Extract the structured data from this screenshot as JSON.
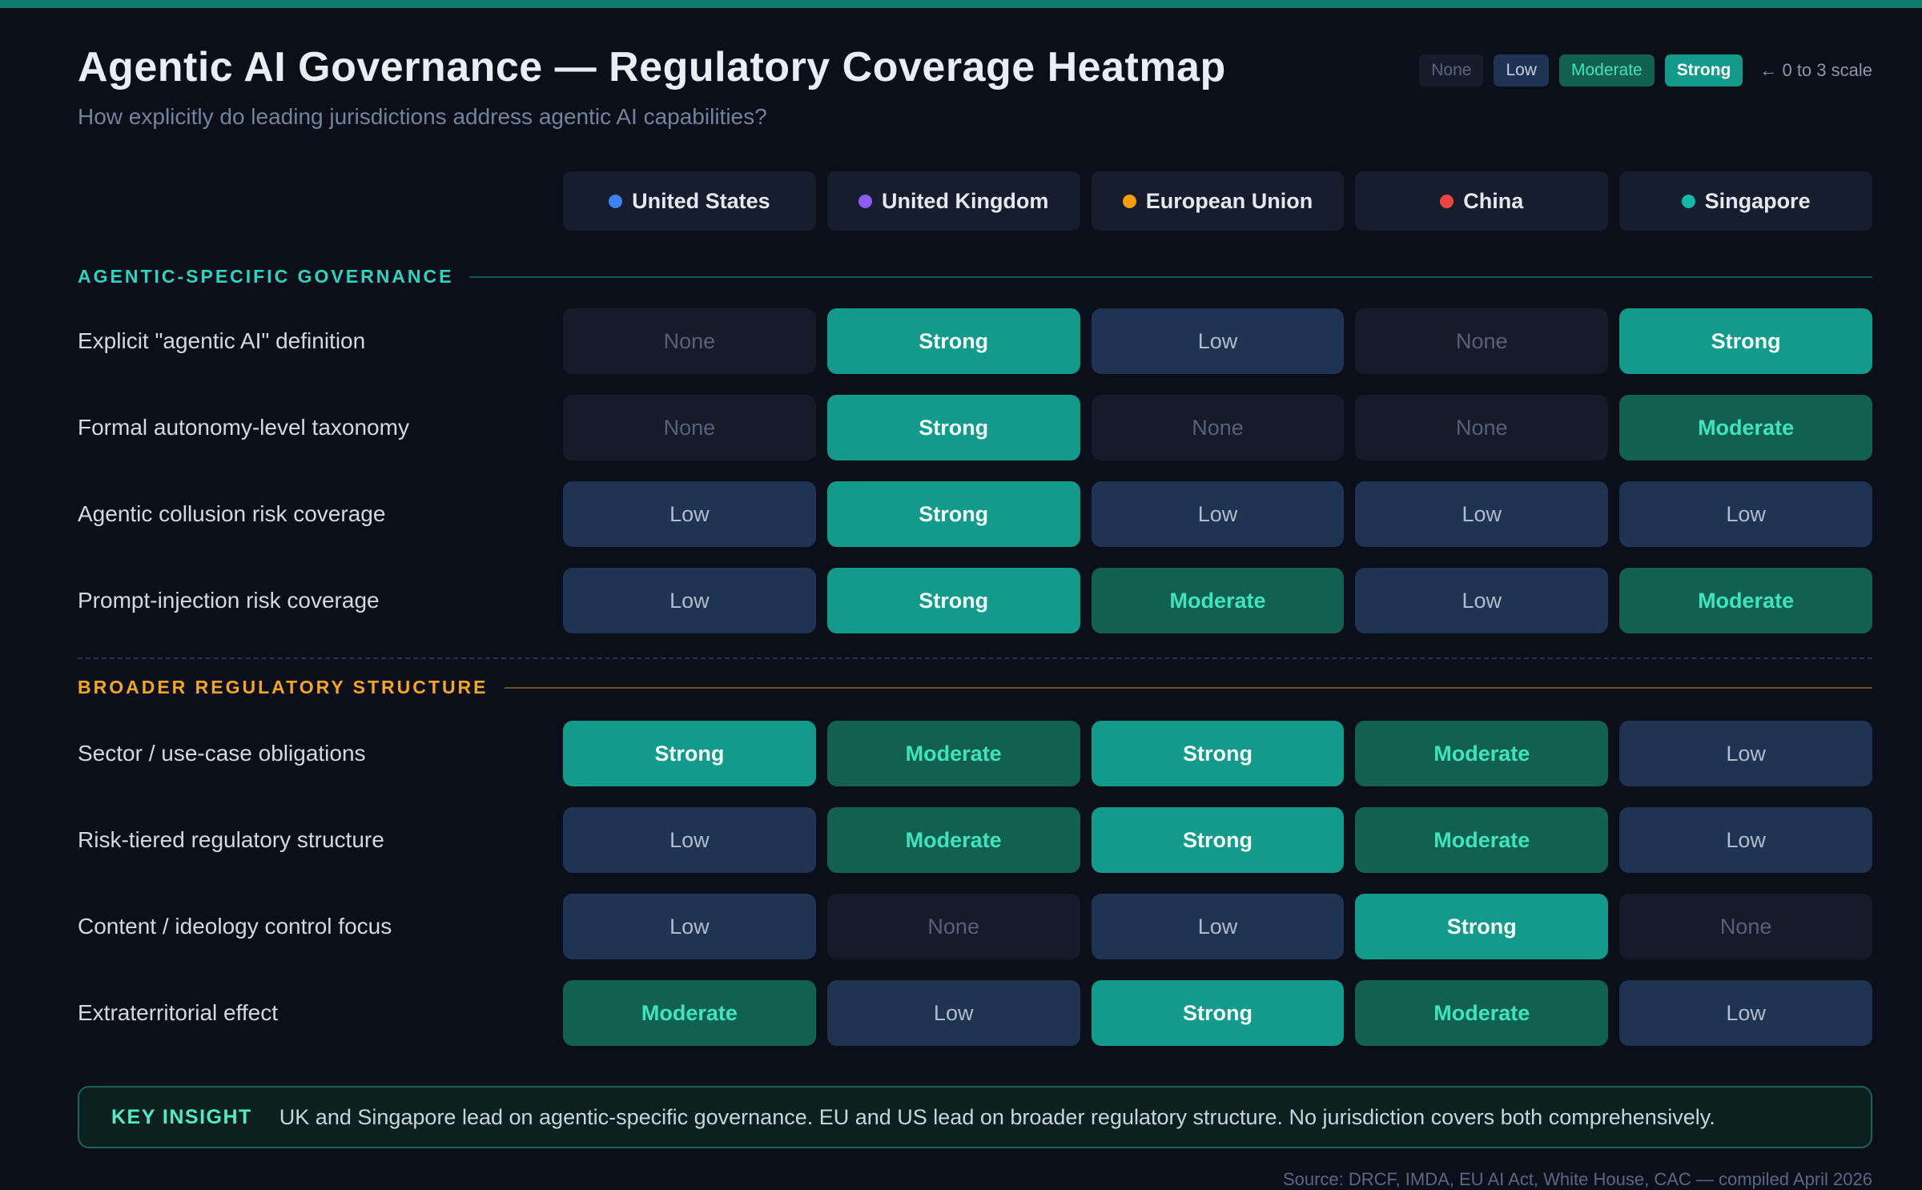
{
  "colors": {
    "accent_bar": "#0f7a6d",
    "background": "#0b0f19",
    "teal_section": "#2dd4bf",
    "amber_section": "#f5a623",
    "strong_bg": "#129a8a",
    "moderate_bg": "#12604f",
    "low_bg": "#1f3353",
    "none_bg": "#151b29"
  },
  "header": {
    "title": "Agentic AI Governance — Regulatory Coverage Heatmap",
    "subtitle": "How explicitly do leading jurisdictions address agentic AI capabilities?"
  },
  "legend": {
    "levels": [
      {
        "label": "None",
        "level": "none"
      },
      {
        "label": "Low",
        "level": "low"
      },
      {
        "label": "Moderate",
        "level": "moderate"
      },
      {
        "label": "Strong",
        "level": "strong"
      }
    ],
    "scale_note": "← 0 to 3 scale"
  },
  "jurisdictions": [
    {
      "name": "United States",
      "dot_color": "#3b82f6"
    },
    {
      "name": "United Kingdom",
      "dot_color": "#8b5cf6"
    },
    {
      "name": "European Union",
      "dot_color": "#f59e0b"
    },
    {
      "name": "China",
      "dot_color": "#ef4444"
    },
    {
      "name": "Singapore",
      "dot_color": "#14b8a6"
    }
  ],
  "level_labels": {
    "none": "None",
    "low": "Low",
    "moderate": "Moderate",
    "strong": "Strong"
  },
  "sections": [
    {
      "title": "AGENTIC-SPECIFIC GOVERNANCE",
      "accent": "teal",
      "rows": [
        {
          "label": "Explicit \"agentic AI\" definition",
          "cells": [
            "none",
            "strong",
            "low",
            "none",
            "strong"
          ]
        },
        {
          "label": "Formal autonomy-level taxonomy",
          "cells": [
            "none",
            "strong",
            "none",
            "none",
            "moderate"
          ]
        },
        {
          "label": "Agentic collusion risk coverage",
          "cells": [
            "low",
            "strong",
            "low",
            "low",
            "low"
          ]
        },
        {
          "label": "Prompt-injection risk coverage",
          "cells": [
            "low",
            "strong",
            "moderate",
            "low",
            "moderate"
          ]
        }
      ]
    },
    {
      "title": "BROADER REGULATORY STRUCTURE",
      "accent": "amber",
      "rows": [
        {
          "label": "Sector / use-case obligations",
          "cells": [
            "strong",
            "moderate",
            "strong",
            "moderate",
            "low"
          ]
        },
        {
          "label": "Risk-tiered regulatory structure",
          "cells": [
            "low",
            "moderate",
            "strong",
            "moderate",
            "low"
          ]
        },
        {
          "label": "Content / ideology control focus",
          "cells": [
            "low",
            "none",
            "low",
            "strong",
            "none"
          ]
        },
        {
          "label": "Extraterritorial effect",
          "cells": [
            "moderate",
            "low",
            "strong",
            "moderate",
            "low"
          ]
        }
      ]
    }
  ],
  "insight": {
    "label": "KEY INSIGHT",
    "text": "UK and Singapore lead on agentic-specific governance. EU and US lead on broader regulatory structure. No jurisdiction covers both comprehensively."
  },
  "source": "Source: DRCF, IMDA, EU AI Act, White House, CAC — compiled April 2026",
  "chart_data": {
    "type": "heatmap",
    "title": "Agentic AI Governance — Regulatory Coverage Heatmap",
    "subtitle": "How explicitly do leading jurisdictions address agentic AI capabilities?",
    "x_categories": [
      "United States",
      "United Kingdom",
      "European Union",
      "China",
      "Singapore"
    ],
    "value_scale": {
      "0": "None",
      "1": "Low",
      "2": "Moderate",
      "3": "Strong"
    },
    "scale_range": [
      0,
      3
    ],
    "legend_position": "top-right",
    "sections": [
      {
        "name": "Agentic-specific governance",
        "rows": [
          {
            "label": "Explicit \"agentic AI\" definition",
            "values": [
              0,
              3,
              1,
              0,
              3
            ]
          },
          {
            "label": "Formal autonomy-level taxonomy",
            "values": [
              0,
              3,
              0,
              0,
              2
            ]
          },
          {
            "label": "Agentic collusion risk coverage",
            "values": [
              1,
              3,
              1,
              1,
              1
            ]
          },
          {
            "label": "Prompt-injection risk coverage",
            "values": [
              1,
              3,
              2,
              1,
              2
            ]
          }
        ]
      },
      {
        "name": "Broader regulatory structure",
        "rows": [
          {
            "label": "Sector / use-case obligations",
            "values": [
              3,
              2,
              3,
              2,
              1
            ]
          },
          {
            "label": "Risk-tiered regulatory structure",
            "values": [
              1,
              2,
              3,
              2,
              1
            ]
          },
          {
            "label": "Content / ideology control focus",
            "values": [
              1,
              0,
              1,
              3,
              0
            ]
          },
          {
            "label": "Extraterritorial effect",
            "values": [
              2,
              1,
              3,
              2,
              1
            ]
          }
        ]
      }
    ]
  }
}
